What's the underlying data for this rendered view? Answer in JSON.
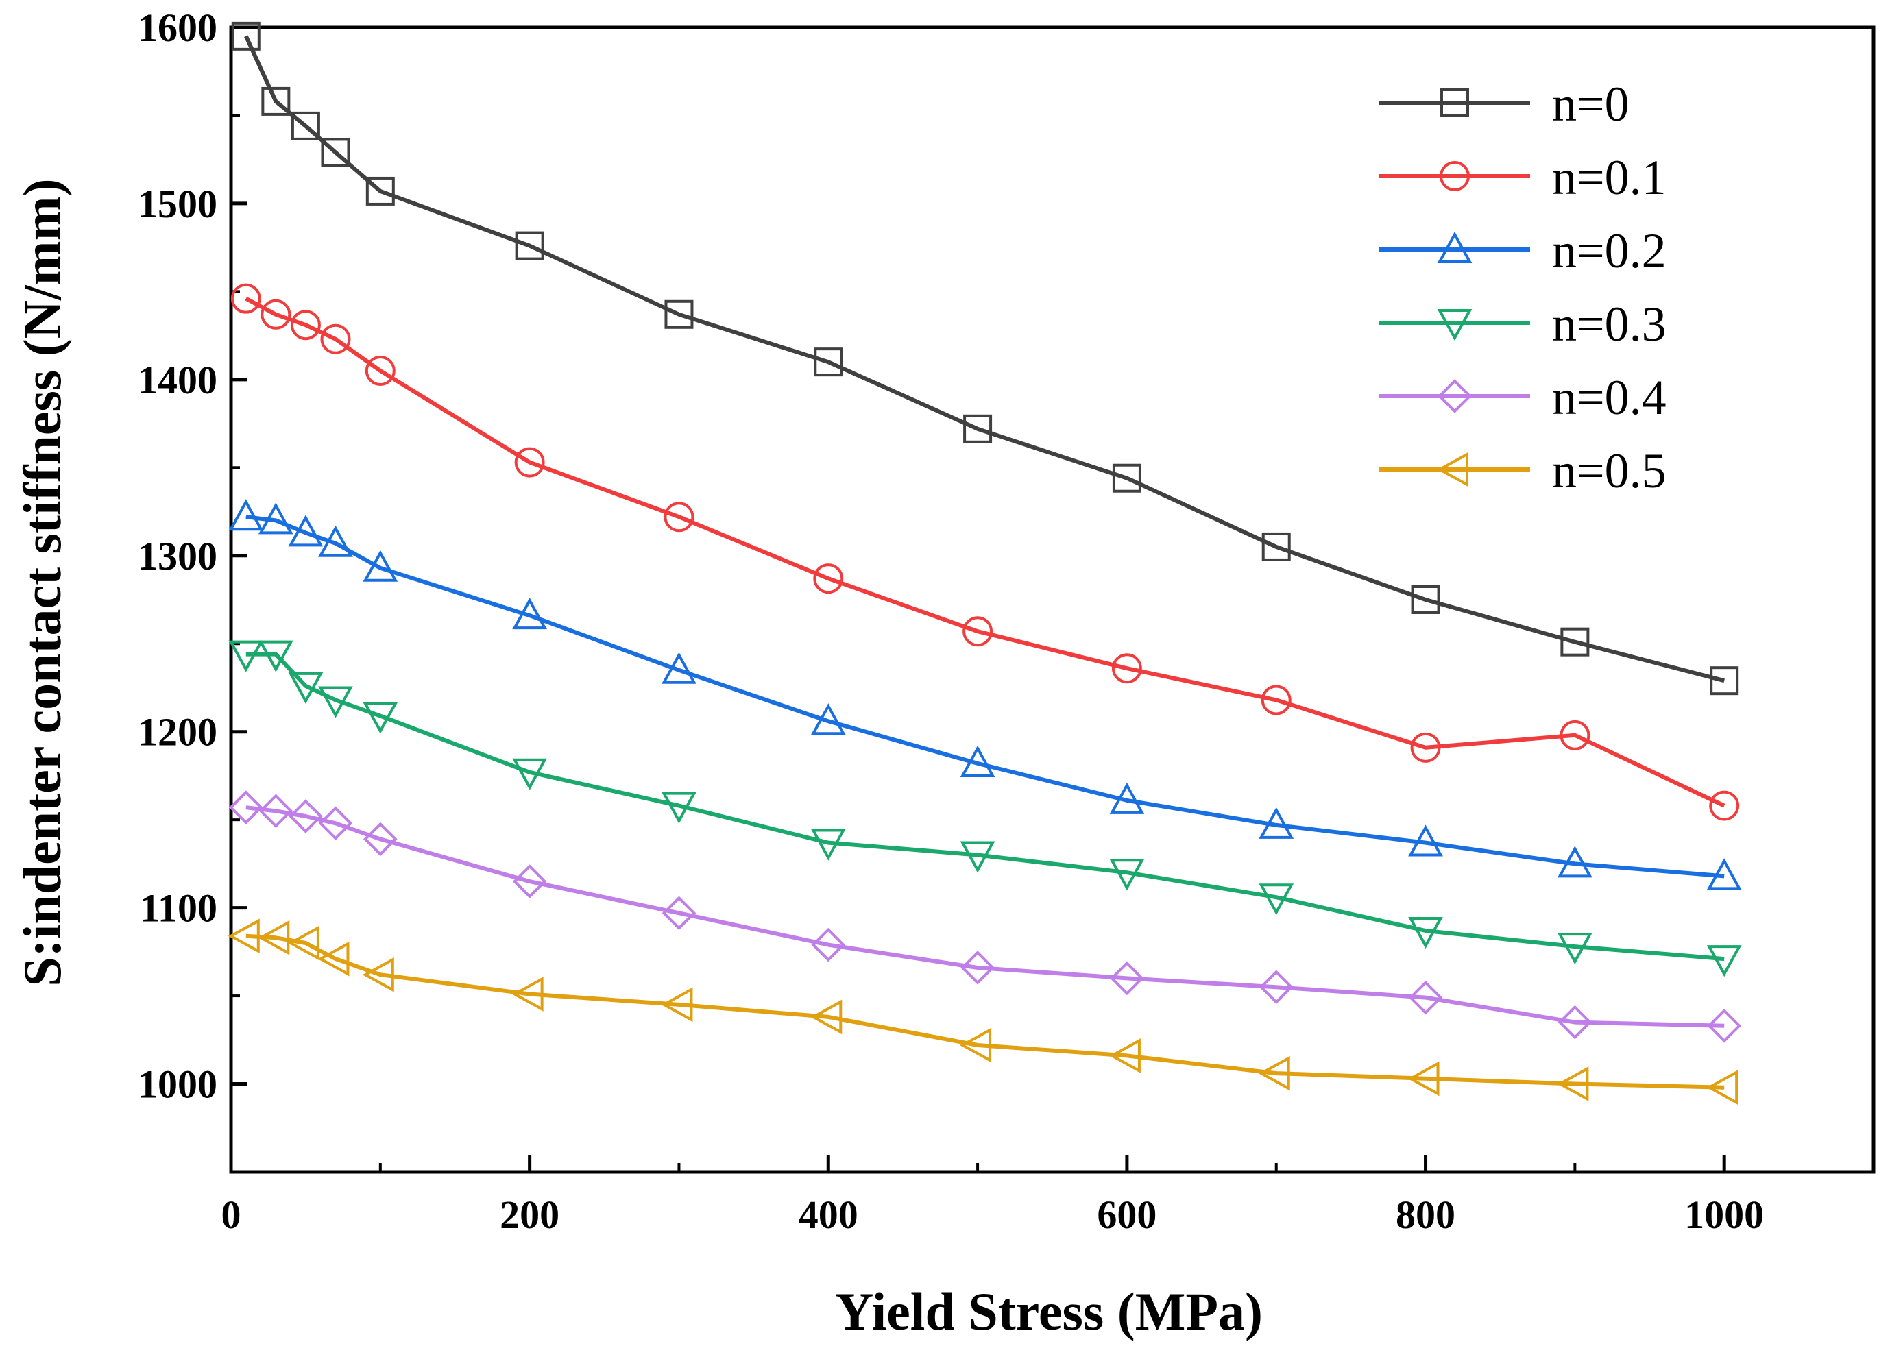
{
  "chart_data": {
    "type": "line",
    "title": "",
    "xlabel": "Yield Stress (MPa)",
    "ylabel": "S:indenter contact stiffness (N/mm)",
    "xlim": [
      0,
      1100
    ],
    "ylim": [
      950,
      1600
    ],
    "xticks": [
      0,
      200,
      400,
      600,
      800,
      1000
    ],
    "yticks": [
      1000,
      1100,
      1200,
      1300,
      1400,
      1500,
      1600
    ],
    "grid": false,
    "legend_position": "top-right",
    "x": [
      10,
      30,
      50,
      70,
      100,
      200,
      300,
      400,
      500,
      600,
      700,
      800,
      900,
      1000
    ],
    "series": [
      {
        "name": "n=0",
        "color": "#404040",
        "marker": "square",
        "values": [
          1595,
          1558,
          1544,
          1529,
          1507,
          1476,
          1437,
          1410,
          1372,
          1344,
          1305,
          1275,
          1251,
          1229
        ]
      },
      {
        "name": "n=0.1",
        "color": "#f03c3c",
        "marker": "circle",
        "values": [
          1446,
          1437,
          1431,
          1423,
          1405,
          1353,
          1322,
          1287,
          1257,
          1236,
          1218,
          1191,
          1198,
          1158
        ]
      },
      {
        "name": "n=0.2",
        "color": "#1a6fe0",
        "marker": "triangle-up",
        "values": [
          1322,
          1320,
          1313,
          1307,
          1293,
          1266,
          1235,
          1206,
          1182,
          1161,
          1147,
          1137,
          1125,
          1118
        ]
      },
      {
        "name": "n=0.3",
        "color": "#1aa86c",
        "marker": "triangle-down",
        "values": [
          1244,
          1244,
          1226,
          1218,
          1209,
          1177,
          1158,
          1137,
          1130,
          1120,
          1106,
          1087,
          1078,
          1071
        ]
      },
      {
        "name": "n=0.4",
        "color": "#c07ee8",
        "marker": "diamond",
        "values": [
          1157,
          1155,
          1152,
          1148,
          1139,
          1115,
          1097,
          1079,
          1066,
          1060,
          1055,
          1049,
          1035,
          1033
        ]
      },
      {
        "name": "n=0.5",
        "color": "#e0a010",
        "marker": "triangle-left",
        "values": [
          1084,
          1083,
          1080,
          1071,
          1062,
          1051,
          1045,
          1038,
          1022,
          1016,
          1006,
          1003,
          1000,
          998
        ]
      }
    ]
  }
}
